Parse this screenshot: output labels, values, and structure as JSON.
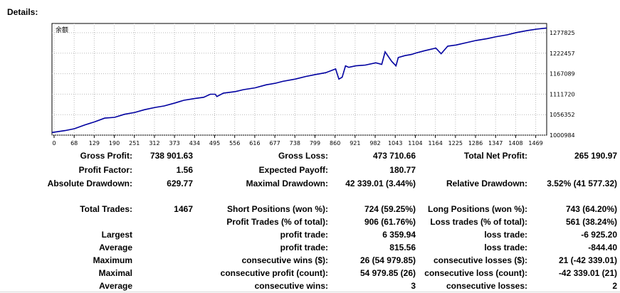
{
  "header": {
    "title": "Details:"
  },
  "chart_data": {
    "type": "line",
    "title": "余额",
    "x_ticks": [
      "0",
      "68",
      "129",
      "190",
      "251",
      "312",
      "373",
      "434",
      "495",
      "556",
      "616",
      "677",
      "738",
      "799",
      "860",
      "921",
      "982",
      "1043",
      "1104",
      "1164",
      "1225",
      "1286",
      "1347",
      "1408",
      "1469"
    ],
    "y_ticks": [
      "1277825",
      "1222457",
      "1167089",
      "1111720",
      "1056352",
      "1000984"
    ],
    "xlim": [
      0,
      1500
    ],
    "ylim": [
      995000,
      1290000
    ],
    "grid": true,
    "line_color": "#0000a0",
    "series": [
      {
        "x": [
          0,
          40,
          68,
          100,
          129,
          160,
          190,
          220,
          251,
          280,
          312,
          340,
          373,
          400,
          434,
          460,
          480,
          495,
          500,
          520,
          556,
          580,
          616,
          650,
          677,
          700,
          738,
          770,
          799,
          830,
          860,
          870,
          880,
          890,
          900,
          921,
          950,
          982,
          1000,
          1010,
          1030,
          1043,
          1050,
          1070,
          1090,
          1104,
          1130,
          1164,
          1180,
          1200,
          1225,
          1260,
          1286,
          1320,
          1347,
          1380,
          1408,
          1440,
          1469,
          1500
        ],
        "y": [
          1002000,
          1007000,
          1012000,
          1022000,
          1030000,
          1040000,
          1042000,
          1050000,
          1055000,
          1062000,
          1068000,
          1072000,
          1080000,
          1087000,
          1092000,
          1095000,
          1103000,
          1103000,
          1097000,
          1106000,
          1110000,
          1115000,
          1120000,
          1128000,
          1132000,
          1137000,
          1143000,
          1150000,
          1155000,
          1160000,
          1170000,
          1143000,
          1148000,
          1178000,
          1174000,
          1178000,
          1180000,
          1186000,
          1182000,
          1215000,
          1190000,
          1178000,
          1200000,
          1205000,
          1208000,
          1212000,
          1218000,
          1225000,
          1210000,
          1230000,
          1233000,
          1240000,
          1245000,
          1250000,
          1255000,
          1260000,
          1266000,
          1271000,
          1275000,
          1278000
        ]
      }
    ]
  },
  "stats": {
    "gross_profit": {
      "label": "Gross Profit:",
      "value": "738 901.63"
    },
    "gross_loss": {
      "label": "Gross Loss:",
      "value": "473 710.66"
    },
    "total_net_profit": {
      "label": "Total Net Profit:",
      "value": "265 190.97"
    },
    "profit_factor": {
      "label": "Profit Factor:",
      "value": "1.56"
    },
    "expected_payoff": {
      "label": "Expected Payoff:",
      "value": "180.77"
    },
    "absolute_drawdown": {
      "label": "Absolute Drawdown:",
      "value": "629.77"
    },
    "maximal_drawdown": {
      "label": "Maximal Drawdown:",
      "value": "42 339.01 (3.44%)"
    },
    "relative_drawdown": {
      "label": "Relative Drawdown:",
      "value": "3.52% (41 577.32)"
    },
    "total_trades": {
      "label": "Total Trades:",
      "value": "1467"
    },
    "short_positions": {
      "label": "Short Positions (won %):",
      "value": "724 (59.25%)"
    },
    "long_positions": {
      "label": "Long Positions (won %):",
      "value": "743 (64.20%)"
    },
    "profit_trades": {
      "label": "Profit Trades (% of total):",
      "value": "906 (61.76%)"
    },
    "loss_trades": {
      "label": "Loss trades (% of total):",
      "value": "561 (38.24%)"
    },
    "largest": {
      "label": "Largest",
      "profit_label": "profit trade:",
      "profit_value": "6 359.94",
      "loss_label": "loss trade:",
      "loss_value": "-6 925.20"
    },
    "average": {
      "label": "Average",
      "profit_label": "profit trade:",
      "profit_value": "815.56",
      "loss_label": "loss trade:",
      "loss_value": "-844.40"
    },
    "maximum": {
      "label": "Maximum",
      "profit_label": "consecutive wins ($):",
      "profit_value": "26 (54 979.85)",
      "loss_label": "consecutive losses ($):",
      "loss_value": "21 (-42 339.01)"
    },
    "maximal": {
      "label": "Maximal",
      "profit_label": "consecutive profit (count):",
      "profit_value": "54 979.85 (26)",
      "loss_label": "consecutive loss (count):",
      "loss_value": "-42 339.01 (21)"
    },
    "average_consecutive": {
      "label": "Average",
      "profit_label": "consecutive wins:",
      "profit_value": "3",
      "loss_label": "consecutive losses:",
      "loss_value": "2"
    }
  }
}
